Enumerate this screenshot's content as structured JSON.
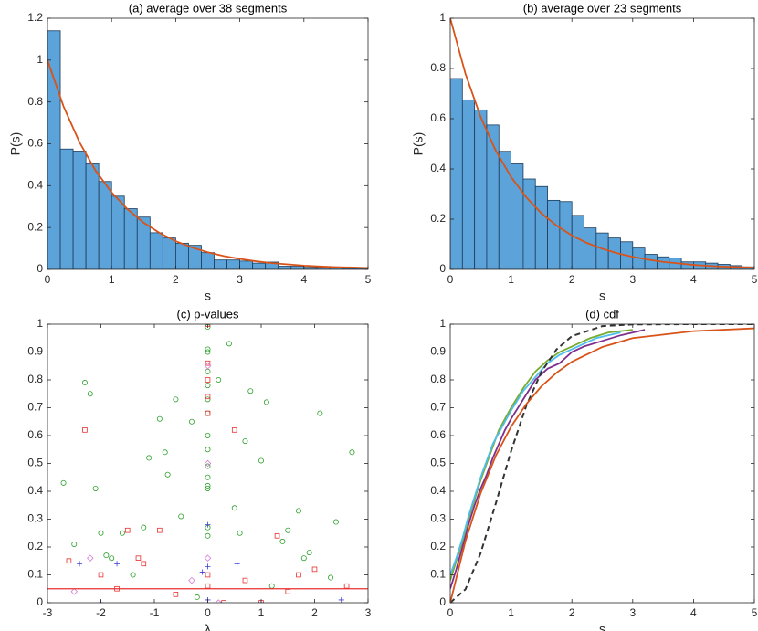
{
  "chart_data": [
    {
      "type": "histogram",
      "title": "(a) average over 38 segments",
      "xlabel": "s",
      "ylabel": "P(s)",
      "bins": [
        0,
        0.2,
        0.4,
        0.6,
        0.8,
        1,
        1.2,
        1.4,
        1.6,
        1.8,
        2,
        2.2,
        2.4,
        2.6,
        2.8,
        3,
        3.2,
        3.4,
        3.6,
        3.8,
        4,
        4.2,
        4.4,
        4.6,
        4.8,
        5
      ],
      "counts": [
        1.14,
        0.575,
        0.565,
        0.505,
        0.42,
        0.35,
        0.29,
        0.25,
        0.175,
        0.15,
        0.125,
        0.115,
        0.08,
        0.045,
        0.045,
        0.04,
        0.03,
        0.035,
        0.015,
        0.015,
        0.01,
        0.01,
        0.01,
        0.005,
        0.005
      ],
      "color": "#5ba3d9",
      "edgecolor": "#1c3b5a",
      "lines": [
        {
          "color": "#d95319",
          "dash": false,
          "x": [
            0,
            0.25,
            0.5,
            0.75,
            1,
            1.25,
            1.5,
            1.75,
            2,
            2.25,
            2.5,
            2.75,
            3,
            3.25,
            3.5,
            3.75,
            4,
            4.25,
            4.5,
            4.75,
            5
          ],
          "values": [
            1,
            0.779,
            0.607,
            0.472,
            0.368,
            0.287,
            0.223,
            0.174,
            0.135,
            0.105,
            0.082,
            0.064,
            0.05,
            0.039,
            0.03,
            0.024,
            0.018,
            0.014,
            0.011,
            0.009,
            0.007
          ]
        }
      ],
      "xlim": [
        0,
        5
      ],
      "ylim": [
        0,
        1.2
      ],
      "xticks": [
        0,
        1,
        2,
        3,
        4,
        5
      ],
      "yticks": [
        0,
        0.2,
        0.4,
        0.6,
        0.8,
        1,
        1.2
      ]
    },
    {
      "type": "histogram",
      "title": "(b) average over 23 segments",
      "xlabel": "s",
      "ylabel": "P(s)",
      "bins": [
        0,
        0.2,
        0.4,
        0.6,
        0.8,
        1,
        1.2,
        1.4,
        1.6,
        1.8,
        2,
        2.2,
        2.4,
        2.6,
        2.8,
        3,
        3.2,
        3.4,
        3.6,
        3.8,
        4,
        4.2,
        4.4,
        4.6,
        4.8,
        5
      ],
      "counts": [
        0.76,
        0.675,
        0.635,
        0.575,
        0.47,
        0.42,
        0.36,
        0.33,
        0.275,
        0.27,
        0.215,
        0.165,
        0.145,
        0.125,
        0.11,
        0.085,
        0.06,
        0.05,
        0.045,
        0.03,
        0.03,
        0.025,
        0.02,
        0.015,
        0.01
      ],
      "color": "#5ba3d9",
      "edgecolor": "#1c3b5a",
      "lines": [
        {
          "color": "#d95319",
          "dash": false,
          "x": [
            0,
            0.25,
            0.5,
            0.75,
            1,
            1.25,
            1.5,
            1.75,
            2,
            2.25,
            2.5,
            2.75,
            3,
            3.25,
            3.5,
            3.75,
            4,
            4.25,
            4.5,
            4.75,
            5
          ],
          "values": [
            1,
            0.779,
            0.607,
            0.472,
            0.368,
            0.287,
            0.223,
            0.174,
            0.135,
            0.105,
            0.082,
            0.064,
            0.05,
            0.039,
            0.03,
            0.024,
            0.018,
            0.014,
            0.011,
            0.009,
            0.007
          ]
        }
      ],
      "xlim": [
        0,
        5
      ],
      "ylim": [
        0,
        1
      ],
      "xticks": [
        0,
        1,
        2,
        3,
        4,
        5
      ],
      "yticks": [
        0,
        0.2,
        0.4,
        0.6,
        0.8,
        1
      ]
    },
    {
      "type": "scatter",
      "title": "(c) p-values",
      "xlabel": "λ",
      "series": [
        {
          "marker": "circle",
          "color": "#2ca02c",
          "x": [
            -2.7,
            -2.5,
            -2.3,
            -2.2,
            -2.1,
            -2,
            -1.8,
            -1.6,
            -1.4,
            -1.2,
            -1.1,
            -0.9,
            -0.8,
            -0.75,
            -0.6,
            -0.5,
            -0.3,
            0,
            0,
            0,
            0,
            0,
            0,
            0,
            0,
            0,
            0,
            0,
            0,
            0,
            0,
            0,
            0.2,
            0.4,
            0.5,
            0.7,
            0.8,
            1,
            1.1,
            1.2,
            1.4,
            1.5,
            1.7,
            1.8,
            1.9,
            2.1,
            2.3,
            2.4,
            2.7,
            -1.9,
            0.6,
            -0.2
          ],
          "values": [
            0.43,
            0.21,
            0.79,
            0.75,
            0.41,
            0.25,
            0.16,
            0.25,
            0.1,
            0.27,
            0.52,
            0.66,
            0.54,
            0.46,
            0.73,
            0.31,
            0.65,
            0.99,
            0.91,
            0.9,
            0.83,
            0.78,
            0.73,
            0.68,
            0.6,
            0.55,
            0.49,
            0.45,
            0.42,
            0.41,
            0.27,
            0.24,
            0.8,
            0.93,
            0.34,
            0.58,
            0.76,
            0.51,
            0.72,
            0.06,
            0.22,
            0.26,
            0.33,
            0.16,
            0.18,
            0.68,
            0.09,
            0.29,
            0.54,
            0.17,
            0.25,
            0.02
          ]
        },
        {
          "marker": "square",
          "color": "#e8302e",
          "x": [
            -2.6,
            -2.3,
            -2,
            -1.7,
            -1.5,
            -1.3,
            -1.2,
            -0.9,
            -0.6,
            0,
            0,
            0,
            0,
            0,
            0,
            0,
            0.5,
            0.7,
            1.3,
            1.5,
            1.7,
            2,
            2.6,
            1,
            0.3
          ],
          "values": [
            0.15,
            0.62,
            0.1,
            0.05,
            0.26,
            0.16,
            0.14,
            0.26,
            0.03,
            1,
            0.86,
            0.8,
            0.74,
            0.68,
            0.1,
            0.06,
            0.62,
            0.08,
            0.24,
            0.04,
            0.1,
            0.12,
            0.06,
            0,
            0
          ]
        },
        {
          "marker": "plus",
          "color": "#3b3bd9",
          "x": [
            -2.4,
            -1.7,
            -0.1,
            0,
            0,
            0,
            0.55,
            2.5,
            -2,
            1
          ],
          "values": [
            0.14,
            0.14,
            0.11,
            0.28,
            0.13,
            0.01,
            0.14,
            0.01,
            0,
            0
          ]
        },
        {
          "marker": "diamond",
          "color": "#d77ad7",
          "x": [
            -2.2,
            -2.5,
            0,
            0,
            0,
            -0.3,
            0.2
          ],
          "values": [
            0.16,
            0.04,
            0.85,
            0.5,
            0.16,
            0.08,
            0
          ]
        }
      ],
      "threshold": 0.05,
      "threshold_color": "#e8302e",
      "xlim": [
        -3,
        3
      ],
      "ylim": [
        0,
        1
      ],
      "xticks": [
        -3,
        -2,
        -1,
        0,
        1,
        2,
        3
      ],
      "yticks": [
        0,
        0.1,
        0.2,
        0.3,
        0.4,
        0.5,
        0.6,
        0.7,
        0.8,
        0.9,
        1
      ]
    },
    {
      "type": "line",
      "title": "(d) cdf",
      "xlabel": "s",
      "lines": [
        {
          "color": "#7e2f8e",
          "dash": false,
          "x": [
            0,
            0.1,
            0.2,
            0.3,
            0.4,
            0.5,
            0.6,
            0.7,
            0.8,
            0.9,
            1,
            1.2,
            1.4,
            1.6,
            1.8,
            2,
            2.2,
            2.5,
            2.8,
            3.2
          ],
          "values": [
            0.05,
            0.12,
            0.2,
            0.28,
            0.35,
            0.41,
            0.46,
            0.52,
            0.57,
            0.62,
            0.66,
            0.73,
            0.8,
            0.84,
            0.86,
            0.9,
            0.92,
            0.94,
            0.96,
            0.98
          ]
        },
        {
          "color": "#77ac30",
          "dash": false,
          "x": [
            0,
            0.1,
            0.2,
            0.3,
            0.4,
            0.5,
            0.6,
            0.7,
            0.8,
            0.9,
            1,
            1.2,
            1.4,
            1.6,
            1.8,
            2,
            2.3,
            2.6,
            3
          ],
          "values": [
            0.08,
            0.15,
            0.22,
            0.3,
            0.37,
            0.44,
            0.5,
            0.56,
            0.62,
            0.66,
            0.7,
            0.77,
            0.83,
            0.87,
            0.9,
            0.92,
            0.95,
            0.97,
            0.98
          ]
        },
        {
          "color": "#4dbeee",
          "dash": false,
          "x": [
            0,
            0.1,
            0.2,
            0.3,
            0.4,
            0.5,
            0.6,
            0.7,
            0.8,
            0.9,
            1,
            1.2,
            1.4,
            1.6,
            1.8,
            2,
            2.4,
            2.8
          ],
          "values": [
            0.1,
            0.16,
            0.23,
            0.31,
            0.38,
            0.45,
            0.51,
            0.57,
            0.61,
            0.65,
            0.69,
            0.76,
            0.81,
            0.86,
            0.89,
            0.91,
            0.95,
            0.97
          ]
        },
        {
          "color": "#333333",
          "dash": true,
          "x": [
            0,
            0.25,
            0.5,
            0.75,
            1,
            1.25,
            1.5,
            1.75,
            2,
            2.5,
            3,
            4,
            5
          ],
          "values": [
            0,
            0.048,
            0.178,
            0.357,
            0.544,
            0.707,
            0.829,
            0.91,
            0.957,
            0.993,
            0.999,
            1,
            1
          ]
        },
        {
          "color": "#d95319",
          "dash": false,
          "x": [
            0,
            0.25,
            0.5,
            0.75,
            1,
            1.25,
            1.5,
            1.75,
            2,
            2.5,
            3,
            4,
            5
          ],
          "values": [
            0,
            0.221,
            0.393,
            0.528,
            0.632,
            0.713,
            0.777,
            0.826,
            0.865,
            0.918,
            0.95,
            0.975,
            0.985
          ]
        }
      ],
      "xlim": [
        0,
        5
      ],
      "ylim": [
        0,
        1
      ],
      "xticks": [
        0,
        1,
        2,
        3,
        4,
        5
      ],
      "yticks": [
        0,
        0.1,
        0.2,
        0.3,
        0.4,
        0.5,
        0.6,
        0.7,
        0.8,
        0.9,
        1
      ]
    }
  ]
}
